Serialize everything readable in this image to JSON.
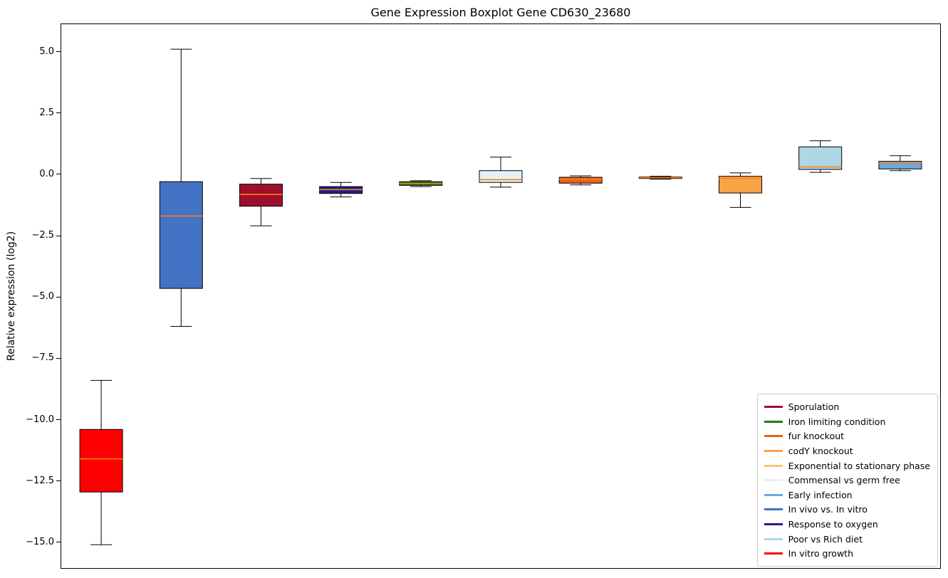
{
  "chart_data": {
    "type": "boxplot",
    "title": "Gene Expression Boxplot Gene CD630_23680",
    "xlabel": "",
    "ylabel": "Relative expression (log2)",
    "ylim": [
      -16.05,
      6.12
    ],
    "grid": false,
    "legend_position": "lower right",
    "median_color": "#FF7F0E",
    "box_edge_color": "#000000",
    "whisker_color": "#000000",
    "yticks": [
      {
        "label": "5.0",
        "value": 5.0
      },
      {
        "label": "2.5",
        "value": 2.5
      },
      {
        "label": "0.0",
        "value": 0.0
      },
      {
        "label": "−2.5",
        "value": -2.5
      },
      {
        "label": "−5.0",
        "value": -5.0
      },
      {
        "label": "−7.5",
        "value": -7.5
      },
      {
        "label": "−10.0",
        "value": -10.0
      },
      {
        "label": "−12.5",
        "value": -12.5
      },
      {
        "label": "−15.0",
        "value": -15.0
      }
    ],
    "boxes": [
      {
        "name": "In vitro growth",
        "color": "#FF0000",
        "whisker_low": -15.1,
        "q1": -12.95,
        "median": -11.6,
        "q3": -10.4,
        "whisker_high": -8.4
      },
      {
        "name": "In vivo vs. In vitro",
        "color": "#4472C4",
        "whisker_low": -6.2,
        "q1": -4.65,
        "median": -1.7,
        "q3": -0.3,
        "whisker_high": 5.1
      },
      {
        "name": "Sporulation",
        "color": "#A00E2E",
        "whisker_low": -2.1,
        "q1": -1.3,
        "median": -0.82,
        "q3": -0.4,
        "whisker_high": -0.17
      },
      {
        "name": "Response to oxygen",
        "color": "#20208C",
        "whisker_low": -0.92,
        "q1": -0.78,
        "median": -0.62,
        "q3": -0.5,
        "whisker_high": -0.33
      },
      {
        "name": "Iron limiting condition",
        "color": "#1A7D1A",
        "whisker_low": -0.5,
        "q1": -0.45,
        "median": -0.37,
        "q3": -0.3,
        "whisker_high": -0.26
      },
      {
        "name": "Commensal vs germ free",
        "color": "#E4F1F8",
        "whisker_low": -0.52,
        "q1": -0.33,
        "median": -0.22,
        "q3": 0.15,
        "whisker_high": 0.7
      },
      {
        "name": "fur knockout",
        "color": "#E8601C",
        "whisker_low": -0.43,
        "q1": -0.36,
        "median": -0.2,
        "q3": -0.12,
        "whisker_high": -0.06
      },
      {
        "name": "Exponential to stationary phase",
        "color": "#FFC473",
        "whisker_low": -0.2,
        "q1": -0.17,
        "median": -0.14,
        "q3": -0.11,
        "whisker_high": -0.08
      },
      {
        "name": "codY knockout",
        "color": "#F9A348",
        "whisker_low": -1.35,
        "q1": -0.76,
        "median": -0.17,
        "q3": -0.08,
        "whisker_high": 0.06
      },
      {
        "name": "Poor vs Rich diet",
        "color": "#ADD8E6",
        "whisker_low": 0.08,
        "q1": 0.2,
        "median": 0.3,
        "q3": 1.12,
        "whisker_high": 1.37
      },
      {
        "name": "Early infection",
        "color": "#6FA8DC",
        "whisker_low": 0.15,
        "q1": 0.22,
        "median": 0.45,
        "q3": 0.53,
        "whisker_high": 0.76
      }
    ],
    "legend": [
      "Sporulation",
      "Iron limiting condition",
      "fur knockout",
      "codY knockout",
      "Exponential to stationary phase",
      "Commensal vs germ free",
      "Early infection",
      "In vivo vs. In vitro",
      "Response to oxygen",
      "Poor vs Rich diet",
      "In vitro growth"
    ]
  }
}
